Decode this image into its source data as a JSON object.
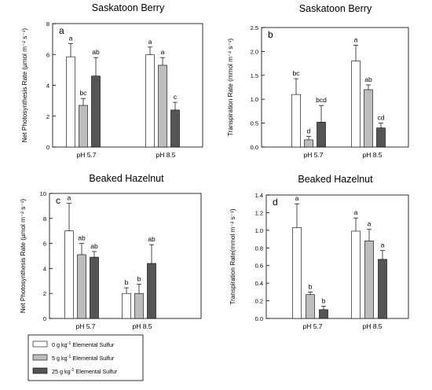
{
  "legend": {
    "placement": "bottom-left",
    "items": [
      {
        "sup": "-1",
        "pre": "0 g kg",
        "post": " Elemental Sulfur",
        "color": "#ffffff"
      },
      {
        "sup": "-1",
        "pre": "5 g kg",
        "post": " Elemental Sulfur",
        "color": "#bdbdbd"
      },
      {
        "sup": "-1",
        "pre": "25 g kg",
        "post": " Elemental Sulfur",
        "color": "#555555"
      }
    ]
  },
  "chart_data": [
    {
      "id": "a",
      "type": "bar",
      "title": "Saskatoon Berry",
      "panel_label": "a",
      "ylabel": "Net Photosynthesis Rate (µmol m⁻² s⁻¹)",
      "ylim": [
        0,
        8
      ],
      "yticks": [
        "0",
        "2",
        "4",
        "6",
        "8"
      ],
      "yticks_values": [
        0,
        2,
        4,
        6,
        8
      ],
      "categories": [
        "pH 5.7",
        "pH 8.5"
      ],
      "series": [
        {
          "values": [
            5.85,
            5.98
          ],
          "errors": [
            0.85,
            0.5
          ],
          "letters": [
            "a",
            "a"
          ]
        },
        {
          "values": [
            2.7,
            5.3
          ],
          "errors": [
            0.45,
            0.5
          ],
          "letters": [
            "bc",
            "a"
          ]
        },
        {
          "values": [
            4.6,
            2.4
          ],
          "errors": [
            1.2,
            0.5
          ],
          "letters": [
            "ab",
            "c"
          ]
        }
      ]
    },
    {
      "id": "b",
      "type": "bar",
      "title": "Saskatoon Berry",
      "panel_label": "b",
      "ylabel": "Transpiration Rate (mmol m⁻² s⁻¹)",
      "ylim": [
        0,
        2.5
      ],
      "yticks": [
        "0.0",
        "0.5",
        "1.0",
        "1.5",
        "2.0",
        "2.5"
      ],
      "yticks_values": [
        0,
        0.5,
        1,
        1.5,
        2,
        2.5
      ],
      "categories": [
        "pH 5.7",
        "pH 8.5"
      ],
      "series": [
        {
          "values": [
            1.1,
            1.8
          ],
          "errors": [
            0.33,
            0.33
          ],
          "letters": [
            "bc",
            "a"
          ]
        },
        {
          "values": [
            0.15,
            1.2
          ],
          "errors": [
            0.07,
            0.1
          ],
          "letters": [
            "d",
            "ab"
          ]
        },
        {
          "values": [
            0.52,
            0.4
          ],
          "errors": [
            0.35,
            0.1
          ],
          "letters": [
            "bcd",
            "cd"
          ]
        }
      ]
    },
    {
      "id": "c",
      "type": "bar",
      "title": "Beaked Hazelnut",
      "panel_label": "c",
      "ylabel": "Net Photosynthesis Rate (µmol m⁻² s⁻¹)",
      "ylim": [
        0,
        10
      ],
      "yticks": [
        "0",
        "2",
        "4",
        "6",
        "8",
        "10"
      ],
      "yticks_values": [
        0,
        2,
        4,
        6,
        8,
        10
      ],
      "categories": [
        "pH 5.7",
        "pH 8.5"
      ],
      "series": [
        {
          "values": [
            7.0,
            2.0
          ],
          "errors": [
            2.2,
            0.45
          ],
          "letters": [
            "a",
            "b"
          ]
        },
        {
          "values": [
            5.1,
            2.0
          ],
          "errors": [
            0.9,
            0.75
          ],
          "letters": [
            "ab",
            "b"
          ]
        },
        {
          "values": [
            4.9,
            4.4
          ],
          "errors": [
            0.45,
            1.5
          ],
          "letters": [
            "ab",
            "ab"
          ]
        }
      ]
    },
    {
      "id": "d",
      "type": "bar",
      "title": "Beaked Hazelnut",
      "panel_label": "d",
      "ylabel": "Transpiration Rate(mmol m⁻² s⁻¹)",
      "ylim": [
        0,
        1.4
      ],
      "yticks": [
        "0.0",
        "0.2",
        "0.4",
        "0.6",
        "0.8",
        "1.0",
        "1.2",
        "1.4"
      ],
      "yticks_values": [
        0,
        0.2,
        0.4,
        0.6,
        0.8,
        1.0,
        1.2,
        1.4
      ],
      "categories": [
        "pH 5.7",
        "pH 8.5"
      ],
      "series": [
        {
          "values": [
            1.03,
            0.99
          ],
          "errors": [
            0.27,
            0.15
          ],
          "letters": [
            "a",
            "a"
          ]
        },
        {
          "values": [
            0.27,
            0.88
          ],
          "errors": [
            0.03,
            0.13
          ],
          "letters": [
            "b",
            "a"
          ]
        },
        {
          "values": [
            0.1,
            0.67
          ],
          "errors": [
            0.04,
            0.1
          ],
          "letters": [
            "b",
            "a"
          ]
        }
      ]
    }
  ]
}
